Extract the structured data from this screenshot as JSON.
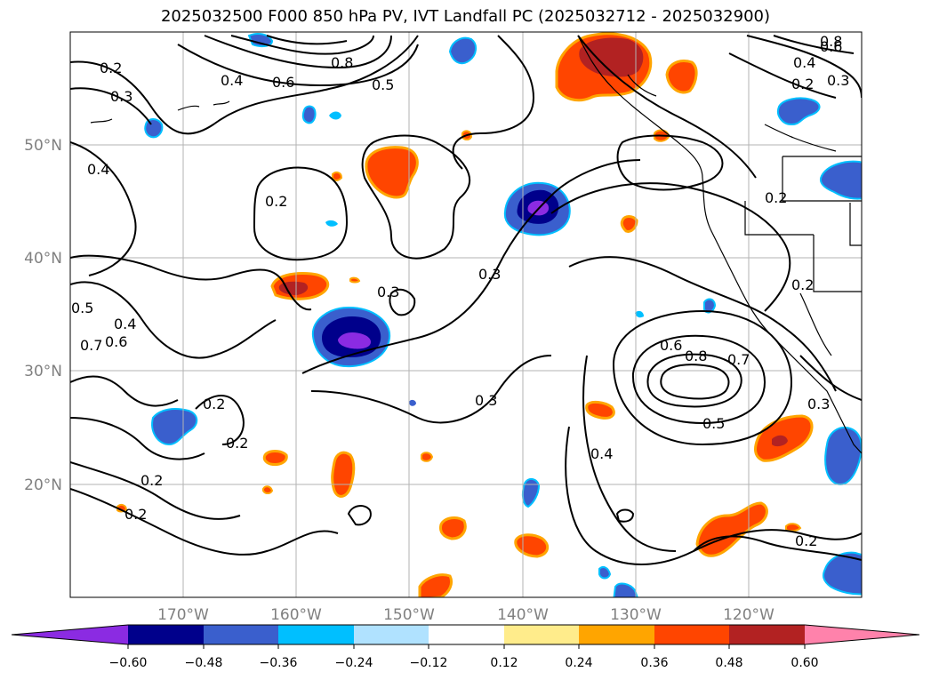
{
  "title": "2025032500 F000 850 hPa PV, IVT Landfall PC (2025032712 - 2025032900)",
  "map": {
    "lon_range": [
      -180,
      -110
    ],
    "lat_range": [
      10,
      60
    ],
    "lat_labels": [
      "50°N",
      "40°N",
      "30°N",
      "20°N"
    ],
    "lon_labels": [
      "170°W",
      "160°W",
      "150°W",
      "140°W",
      "130°W",
      "120°W"
    ],
    "contour_labels": [
      "0.2",
      "0.3",
      "0.4",
      "0.5",
      "0.6",
      "0.8",
      "0.4",
      "0.2",
      "0.3",
      "0.3",
      "0.3",
      "0.2",
      "0.2",
      "0.2",
      "0.2",
      "0.5",
      "0.4",
      "0.6",
      "0.7",
      "0.6",
      "0.8",
      "0.7",
      "0.5",
      "0.4",
      "0.2",
      "0.2",
      "0.3",
      "0.2",
      "0.6",
      "0.8",
      "0.4",
      "0.2",
      "0.3"
    ]
  },
  "colorbar": {
    "ticks": [
      "−0.60",
      "−0.48",
      "−0.36",
      "−0.24",
      "−0.12",
      "0.12",
      "0.24",
      "0.36",
      "0.48",
      "0.60"
    ],
    "colors": [
      "#8b2be2",
      "#00008b",
      "#3a5fcd",
      "#00bfff",
      "#b0e2ff",
      "#ffffff",
      "#ffec8b",
      "#ffa500",
      "#ff4500",
      "#b22222",
      "#ff82ab"
    ]
  }
}
